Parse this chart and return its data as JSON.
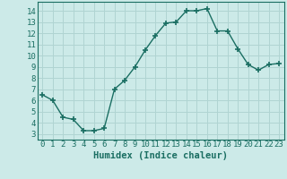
{
  "x": [
    0,
    1,
    2,
    3,
    4,
    5,
    6,
    7,
    8,
    9,
    10,
    11,
    12,
    13,
    14,
    15,
    16,
    17,
    18,
    19,
    20,
    21,
    22,
    23
  ],
  "y": [
    6.5,
    6.0,
    4.5,
    4.3,
    3.3,
    3.3,
    3.5,
    7.0,
    7.8,
    9.0,
    10.5,
    11.8,
    12.9,
    13.0,
    14.0,
    14.0,
    14.2,
    12.2,
    12.2,
    10.6,
    9.2,
    8.7,
    9.2,
    9.3
  ],
  "line_color": "#1a6e62",
  "marker": "+",
  "marker_size": 4,
  "marker_lw": 1.2,
  "bg_color": "#cceae8",
  "grid_color": "#b0d4d2",
  "xlabel": "Humidex (Indice chaleur)",
  "xlim": [
    -0.5,
    23.5
  ],
  "ylim": [
    2.5,
    14.8
  ],
  "yticks": [
    3,
    4,
    5,
    6,
    7,
    8,
    9,
    10,
    11,
    12,
    13,
    14
  ],
  "xticks": [
    0,
    1,
    2,
    3,
    4,
    5,
    6,
    7,
    8,
    9,
    10,
    11,
    12,
    13,
    14,
    15,
    16,
    17,
    18,
    19,
    20,
    21,
    22,
    23
  ],
  "tick_fontsize": 6.5,
  "xlabel_fontsize": 7.5,
  "spine_color": "#1a6e62",
  "line_width": 1.0
}
